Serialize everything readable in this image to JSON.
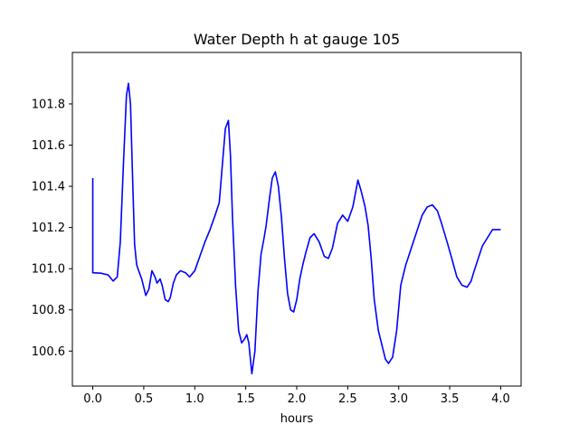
{
  "chart_data": {
    "type": "line",
    "title": "Water Depth h at gauge 105",
    "xlabel": "hours",
    "ylabel": "",
    "xlim": [
      -0.2,
      4.2
    ],
    "ylim": [
      100.43,
      102.05
    ],
    "xticks": [
      0.0,
      0.5,
      1.0,
      1.5,
      2.0,
      2.5,
      3.0,
      3.5,
      4.0
    ],
    "xtick_labels": [
      "0.0",
      "0.5",
      "1.0",
      "1.5",
      "2.0",
      "2.5",
      "3.0",
      "3.5",
      "4.0"
    ],
    "yticks": [
      100.6,
      100.8,
      101.0,
      101.2,
      101.4,
      101.6,
      101.8
    ],
    "ytick_labels": [
      "100.6",
      "100.8",
      "101.0",
      "101.2",
      "101.4",
      "101.6",
      "101.8"
    ],
    "grid": false,
    "series": [
      {
        "color": "#0000ff",
        "x": [
          0.0,
          0.0,
          0.01,
          0.08,
          0.15,
          0.2,
          0.24,
          0.27,
          0.3,
          0.33,
          0.35,
          0.37,
          0.39,
          0.41,
          0.43,
          0.45,
          0.48,
          0.52,
          0.55,
          0.58,
          0.61,
          0.63,
          0.66,
          0.68,
          0.71,
          0.74,
          0.76,
          0.79,
          0.82,
          0.86,
          0.91,
          0.95,
          1.0,
          1.05,
          1.1,
          1.15,
          1.2,
          1.24,
          1.27,
          1.3,
          1.33,
          1.35,
          1.37,
          1.4,
          1.43,
          1.46,
          1.49,
          1.51,
          1.53,
          1.56,
          1.59,
          1.62,
          1.65,
          1.68,
          1.7,
          1.73,
          1.76,
          1.79,
          1.82,
          1.85,
          1.88,
          1.91,
          1.94,
          1.97,
          2.0,
          2.03,
          2.06,
          2.09,
          2.13,
          2.17,
          2.22,
          2.27,
          2.31,
          2.35,
          2.4,
          2.45,
          2.5,
          2.55,
          2.6,
          2.63,
          2.67,
          2.7,
          2.73,
          2.76,
          2.8,
          2.84,
          2.87,
          2.9,
          2.94,
          2.98,
          3.02,
          3.07,
          3.11,
          3.15,
          3.19,
          3.23,
          3.28,
          3.33,
          3.38,
          3.42,
          3.45,
          3.48,
          3.52,
          3.57,
          3.62,
          3.67,
          3.71,
          3.74,
          3.78,
          3.82,
          3.87,
          3.92,
          3.96,
          4.0
        ],
        "y": [
          101.44,
          100.98,
          100.98,
          100.978,
          100.97,
          100.94,
          100.96,
          101.13,
          101.5,
          101.84,
          101.9,
          101.8,
          101.45,
          101.12,
          101.02,
          100.99,
          100.95,
          100.87,
          100.9,
          100.99,
          100.96,
          100.93,
          100.95,
          100.92,
          100.85,
          100.84,
          100.86,
          100.93,
          100.97,
          100.99,
          100.98,
          100.96,
          100.99,
          101.06,
          101.13,
          101.19,
          101.26,
          101.32,
          101.5,
          101.68,
          101.72,
          101.55,
          101.25,
          100.92,
          100.7,
          100.64,
          100.66,
          100.68,
          100.64,
          100.49,
          100.6,
          100.89,
          101.07,
          101.15,
          101.21,
          101.33,
          101.44,
          101.47,
          101.4,
          101.25,
          101.05,
          100.88,
          100.8,
          100.79,
          100.85,
          100.95,
          101.02,
          101.08,
          101.15,
          101.17,
          101.13,
          101.06,
          101.05,
          101.1,
          101.22,
          101.26,
          101.23,
          101.3,
          101.43,
          101.38,
          101.3,
          101.21,
          101.05,
          100.85,
          100.7,
          100.62,
          100.56,
          100.54,
          100.57,
          100.7,
          100.92,
          101.02,
          101.08,
          101.14,
          101.2,
          101.26,
          101.3,
          101.31,
          101.28,
          101.22,
          101.17,
          101.12,
          101.05,
          100.96,
          100.92,
          100.91,
          100.94,
          100.99,
          101.05,
          101.11,
          101.15,
          101.19,
          101.19,
          101.19
        ]
      }
    ]
  }
}
